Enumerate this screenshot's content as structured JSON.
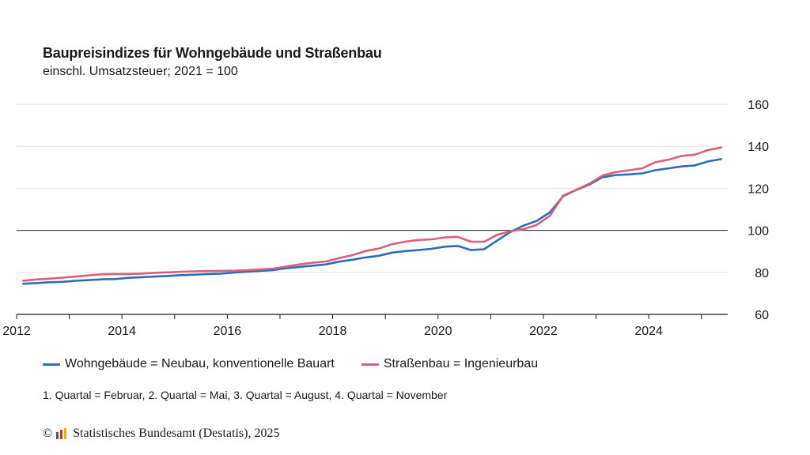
{
  "chart_data": {
    "type": "line",
    "title": "Baupreisindizes für Wohngebäude und Straßenbau",
    "subtitle": "einschl. Umsatzsteuer; 2021 = 100",
    "xlabel": "",
    "ylabel": "",
    "ylim": [
      60,
      160
    ],
    "yticks": [
      60,
      80,
      100,
      120,
      140,
      160
    ],
    "xlim": [
      2012.0,
      2025.5
    ],
    "xticks": [
      2012,
      2014,
      2016,
      2018,
      2020,
      2022,
      2024
    ],
    "grid": true,
    "reference_line": 100,
    "legend_position": "bottom",
    "x": [
      2012.125,
      2012.375,
      2012.625,
      2012.875,
      2013.125,
      2013.375,
      2013.625,
      2013.875,
      2014.125,
      2014.375,
      2014.625,
      2014.875,
      2015.125,
      2015.375,
      2015.625,
      2015.875,
      2016.125,
      2016.375,
      2016.625,
      2016.875,
      2017.125,
      2017.375,
      2017.625,
      2017.875,
      2018.125,
      2018.375,
      2018.625,
      2018.875,
      2019.125,
      2019.375,
      2019.625,
      2019.875,
      2020.125,
      2020.375,
      2020.625,
      2020.875,
      2021.125,
      2021.375,
      2021.625,
      2021.875,
      2022.125,
      2022.375,
      2022.625,
      2022.875,
      2023.125,
      2023.375,
      2023.625,
      2023.875,
      2024.125,
      2024.375,
      2024.625,
      2024.875,
      2025.125,
      2025.375
    ],
    "series": [
      {
        "name": "Wohngebäude = Neubau, konventionelle Bauart",
        "color": "#2f6cb8",
        "values": [
          74.6,
          74.9,
          75.3,
          75.5,
          76.0,
          76.3,
          76.7,
          76.8,
          77.4,
          77.7,
          78.0,
          78.3,
          78.7,
          78.9,
          79.2,
          79.4,
          79.9,
          80.3,
          80.7,
          81.1,
          82.0,
          82.6,
          83.2,
          83.8,
          85.1,
          86.0,
          87.1,
          87.9,
          89.4,
          90.1,
          90.6,
          91.2,
          92.2,
          92.6,
          90.6,
          91.0,
          95.2,
          99.2,
          102.3,
          104.5,
          108.6,
          116.2,
          119.2,
          121.8,
          125.3,
          126.3,
          126.6,
          127.1,
          128.6,
          129.5,
          130.4,
          130.9,
          132.8,
          133.9
        ]
      },
      {
        "name": "Straßenbau = Ingenieurbau",
        "color": "#d9607a",
        "values": [
          76.0,
          76.6,
          77.0,
          77.5,
          78.0,
          78.6,
          79.1,
          79.2,
          79.2,
          79.4,
          79.8,
          80.0,
          80.3,
          80.5,
          80.6,
          80.7,
          80.8,
          81.0,
          81.4,
          81.8,
          82.8,
          83.8,
          84.6,
          85.2,
          86.8,
          88.2,
          90.2,
          91.3,
          93.4,
          94.6,
          95.4,
          95.7,
          96.6,
          96.9,
          94.6,
          94.6,
          97.9,
          99.6,
          100.6,
          102.6,
          107.0,
          116.5,
          119.3,
          122.2,
          126.1,
          127.7,
          128.6,
          129.5,
          132.4,
          133.6,
          135.4,
          136.0,
          138.2,
          139.4
        ]
      }
    ]
  },
  "note": "1. Quartal = Februar, 2. Quartal = Mai, 3. Quartal = August, 4. Quartal = November",
  "source": {
    "copyright_symbol": "©",
    "text": "Statistisches Bundesamt (Destatis), 2025",
    "logo_icon": "destatis-logo-icon"
  }
}
